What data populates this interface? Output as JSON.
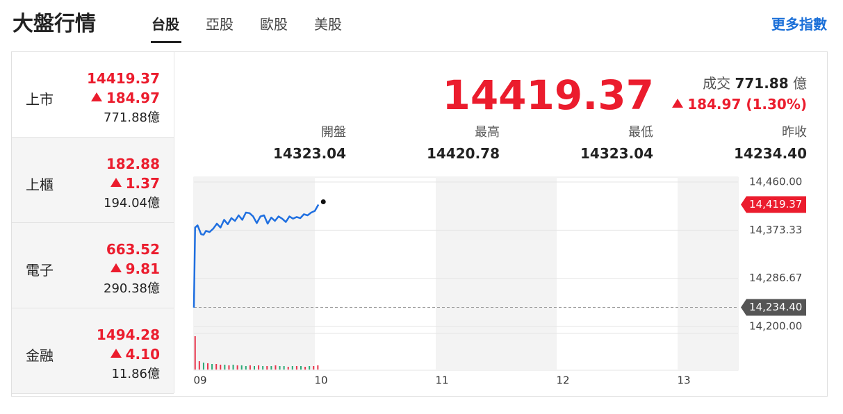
{
  "header": {
    "title": "大盤行情",
    "tabs": [
      "台股",
      "亞股",
      "歐股",
      "美股"
    ],
    "more": "更多指數"
  },
  "indices": [
    {
      "name": "上市",
      "price": "14419.37",
      "change": "184.97",
      "volume": "771.88",
      "unit": "億"
    },
    {
      "name": "上櫃",
      "price": "182.88",
      "change": "1.37",
      "volume": "194.04",
      "unit": "億"
    },
    {
      "name": "電子",
      "price": "663.52",
      "change": "9.81",
      "volume": "290.38",
      "unit": "億"
    },
    {
      "name": "金融",
      "price": "1494.28",
      "change": "4.10",
      "volume": "11.86",
      "unit": "億"
    }
  ],
  "summary": {
    "price": "14419.37",
    "volume_label": "成交",
    "volume": "771.88",
    "unit": "億",
    "change": "184.97 (1.30%)",
    "stats": [
      {
        "label": "開盤",
        "value": "14323.04"
      },
      {
        "label": "最高",
        "value": "14420.78"
      },
      {
        "label": "最低",
        "value": "14323.04"
      },
      {
        "label": "昨收",
        "value": "14234.40"
      }
    ]
  },
  "chart_data": {
    "type": "line",
    "color": "#1f6fe0",
    "x": [
      9.0,
      9.01,
      9.03,
      9.06,
      9.08,
      9.1,
      9.13,
      9.16,
      9.19,
      9.22,
      9.25,
      9.28,
      9.31,
      9.34,
      9.37,
      9.4,
      9.43,
      9.46,
      9.49,
      9.52,
      9.55,
      9.58,
      9.61,
      9.64,
      9.67,
      9.7,
      9.73,
      9.76,
      9.79,
      9.82,
      9.85,
      9.88,
      9.91,
      9.94,
      9.97,
      10.0,
      10.03
    ],
    "values": [
      14234,
      14378,
      14382,
      14366,
      14365,
      14372,
      14370,
      14376,
      14385,
      14378,
      14392,
      14384,
      14395,
      14390,
      14400,
      14392,
      14405,
      14404,
      14398,
      14386,
      14398,
      14400,
      14385,
      14396,
      14390,
      14398,
      14394,
      14388,
      14398,
      14394,
      14397,
      14395,
      14402,
      14400,
      14405,
      14408,
      14419.37
    ],
    "xlim": [
      9,
      13.5
    ],
    "xticks": [
      {
        "value": 9,
        "label": "09"
      },
      10,
      11,
      12,
      13
    ],
    "ylim": [
      14200,
      14460
    ],
    "yticks": [
      {
        "value": 14200,
        "label": "14,200.00"
      },
      {
        "value": 14286.67,
        "label": "14,286.67"
      },
      {
        "value": 14373.33,
        "label": "14,373.33"
      },
      {
        "value": 14460,
        "label": "14,460.00"
      }
    ],
    "grid": true,
    "last": {
      "value": 14419.37,
      "label": "14,419.37"
    },
    "prev_close": {
      "value": 14234.4,
      "label": "14,234.40"
    },
    "volume": {
      "x": [
        9.01,
        9.045,
        9.08,
        9.115,
        9.15,
        9.185,
        9.22,
        9.255,
        9.29,
        9.325,
        9.36,
        9.395,
        9.43,
        9.465,
        9.5,
        9.535,
        9.57,
        9.605,
        9.64,
        9.675,
        9.71,
        9.745,
        9.78,
        9.815,
        9.85,
        9.885,
        9.92,
        9.955,
        9.99,
        10.025
      ],
      "values": [
        48,
        12,
        10,
        9,
        8,
        8,
        7,
        7,
        6,
        7,
        6,
        6,
        5,
        6,
        5,
        6,
        5,
        5,
        5,
        6,
        5,
        5,
        4,
        5,
        5,
        5,
        4,
        5,
        5,
        6
      ],
      "colors": [
        "#e8334a",
        "#e8334a",
        "#2aa876",
        "#e8334a",
        "#2aa876",
        "#e8334a",
        "#e8334a",
        "#2aa876",
        "#e8334a",
        "#2aa876",
        "#e8334a",
        "#2aa876",
        "#2aa876",
        "#e8334a",
        "#2aa876",
        "#e8334a",
        "#2aa876",
        "#e8334a",
        "#2aa876",
        "#e8334a",
        "#2aa876",
        "#2aa876",
        "#e8334a",
        "#2aa876",
        "#e8334a",
        "#2aa876",
        "#e8334a",
        "#2aa876",
        "#e8334a",
        "#e8334a"
      ]
    }
  }
}
